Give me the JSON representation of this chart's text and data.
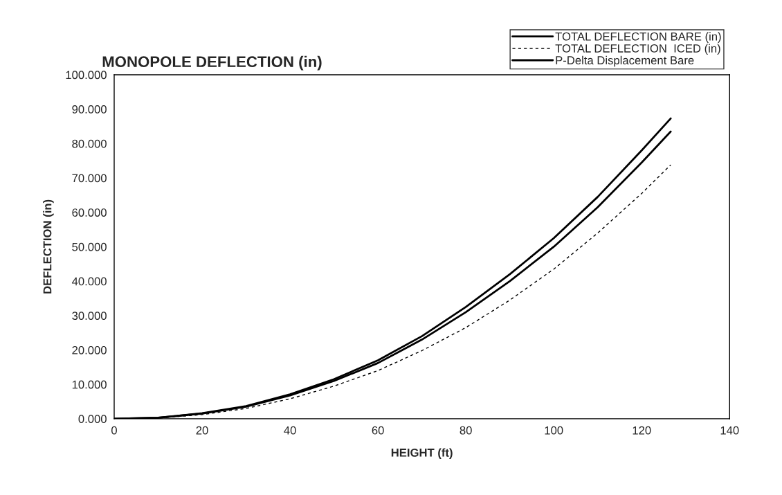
{
  "chart_data": {
    "type": "line",
    "title": "MONOPOLE DEFLECTION (in)",
    "xlabel": "HEIGHT (ft)",
    "ylabel": "DEFLECTION (in)",
    "x": [
      0,
      10,
      20,
      30,
      40,
      50,
      60,
      70,
      80,
      90,
      100,
      110,
      120,
      126.6
    ],
    "series": [
      {
        "name": "TOTAL DEFLECTION BARE (in)",
        "color": "#000000",
        "line_style": "solid",
        "values": [
          0,
          0.3,
          1.5,
          3.5,
          6.8,
          11,
          16.2,
          23,
          31,
          40,
          50,
          61.5,
          74.5,
          83.5
        ]
      },
      {
        "name": "TOTAL DEFLECTION  ICED (in)",
        "color": "#000000",
        "line_style": "dashed",
        "values": [
          0,
          0.2,
          1.2,
          3.0,
          5.8,
          9.5,
          14,
          19.8,
          26.5,
          34.5,
          43.5,
          54,
          65.5,
          73.8
        ]
      },
      {
        "name": "P-Delta Displacement Bare",
        "color": "#000000",
        "line_style": "solid",
        "values": [
          0,
          0.3,
          1.6,
          3.7,
          7.1,
          11.5,
          17,
          24,
          32.5,
          42,
          52.5,
          64.5,
          78,
          87.3
        ]
      }
    ],
    "xlim": [
      0,
      140
    ],
    "xticks": [
      0,
      20,
      40,
      60,
      80,
      100,
      120,
      140
    ],
    "ylim": [
      0,
      100
    ],
    "yticks": [
      {
        "value": 0,
        "label": "0.000"
      },
      {
        "value": 10,
        "label": "10.000"
      },
      {
        "value": 20,
        "label": "20.000"
      },
      {
        "value": 30,
        "label": "30.000"
      },
      {
        "value": 40,
        "label": "40.000"
      },
      {
        "value": 50,
        "label": "50.000"
      },
      {
        "value": 60,
        "label": "60.000"
      },
      {
        "value": 70,
        "label": "70.000"
      },
      {
        "value": 80,
        "label": "80.000"
      },
      {
        "value": 90,
        "label": "90.000"
      },
      {
        "value": 100,
        "label": "100.000"
      }
    ],
    "grid": false,
    "legend": "top right",
    "marker": "none"
  }
}
